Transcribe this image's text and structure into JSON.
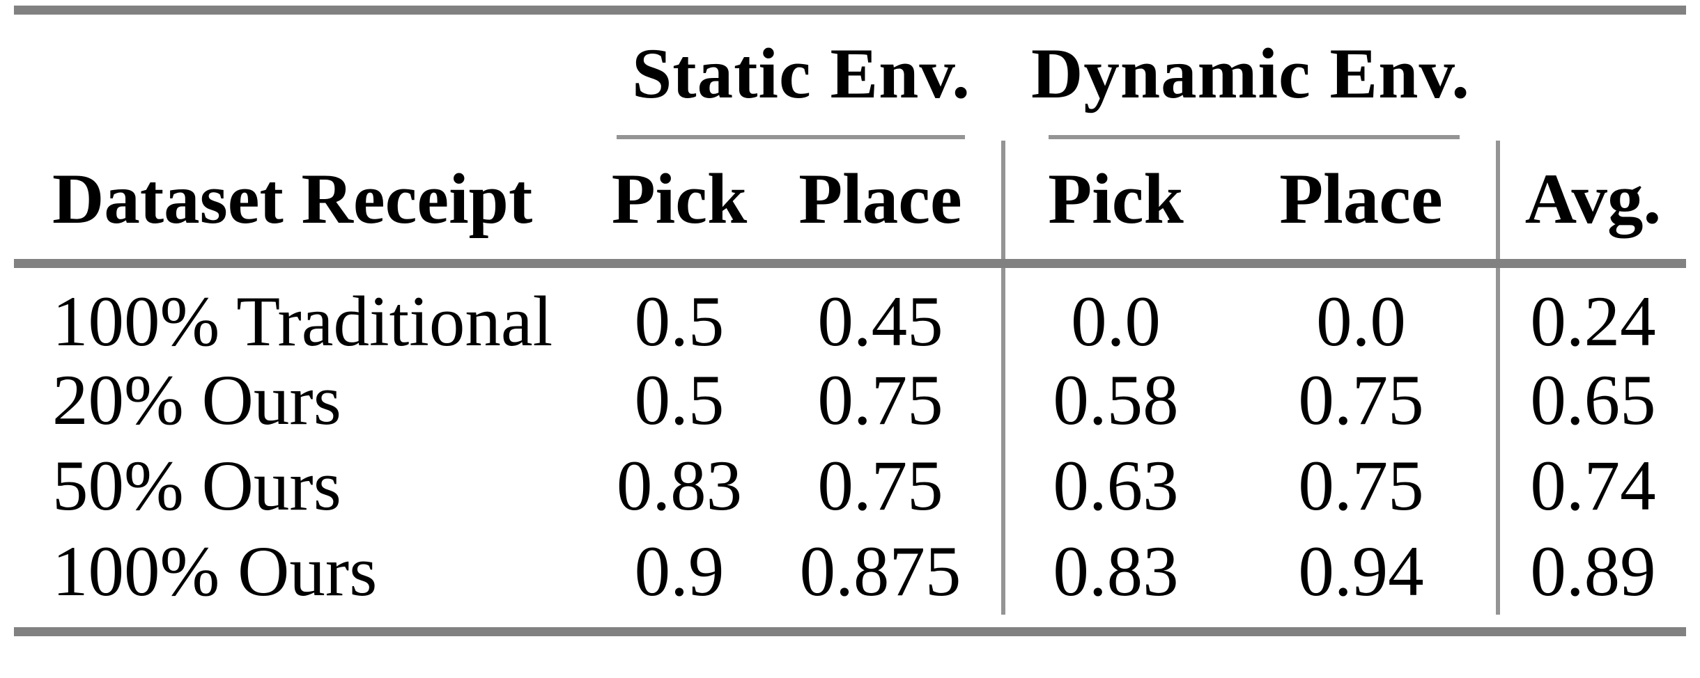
{
  "page": {
    "background": "#ffffff"
  },
  "colors": {
    "text": "#000000",
    "rule_heavy": "#818181",
    "rule_light": "#949494"
  },
  "table": {
    "group_headers": {
      "static": "Static Env.",
      "dynamic": "Dynamic Env."
    },
    "column_headers": {
      "label": "Dataset Receipt",
      "static_pick": "Pick",
      "static_place": "Place",
      "dynamic_pick": "Pick",
      "dynamic_place": "Place",
      "avg": "Avg."
    },
    "rows": [
      [
        "100% Traditional",
        "0.5",
        "0.45",
        "0.0",
        "0.0",
        "0.24"
      ],
      [
        "20% Ours",
        "0.5",
        "0.75",
        "0.58",
        "0.75",
        "0.65"
      ],
      [
        "50% Ours",
        "0.83",
        "0.75",
        "0.63",
        "0.75",
        "0.74"
      ],
      [
        "100% Ours",
        "0.9",
        "0.875",
        "0.83",
        "0.94",
        "0.89"
      ]
    ]
  },
  "chart_data": {
    "type": "table",
    "columns": [
      "Dataset Receipt",
      "Static Env. Pick",
      "Static Env. Place",
      "Dynamic Env. Pick",
      "Dynamic Env. Place",
      "Avg."
    ],
    "rows": [
      {
        "dataset_receipt": "100% Traditional",
        "static_pick": 0.5,
        "static_place": 0.45,
        "dynamic_pick": 0.0,
        "dynamic_place": 0.0,
        "avg": 0.24
      },
      {
        "dataset_receipt": "20% Ours",
        "static_pick": 0.5,
        "static_place": 0.75,
        "dynamic_pick": 0.58,
        "dynamic_place": 0.75,
        "avg": 0.65
      },
      {
        "dataset_receipt": "50% Ours",
        "static_pick": 0.83,
        "static_place": 0.75,
        "dynamic_pick": 0.63,
        "dynamic_place": 0.75,
        "avg": 0.74
      },
      {
        "dataset_receipt": "100% Ours",
        "static_pick": 0.9,
        "static_place": 0.875,
        "dynamic_pick": 0.83,
        "dynamic_place": 0.94,
        "avg": 0.89
      }
    ]
  }
}
